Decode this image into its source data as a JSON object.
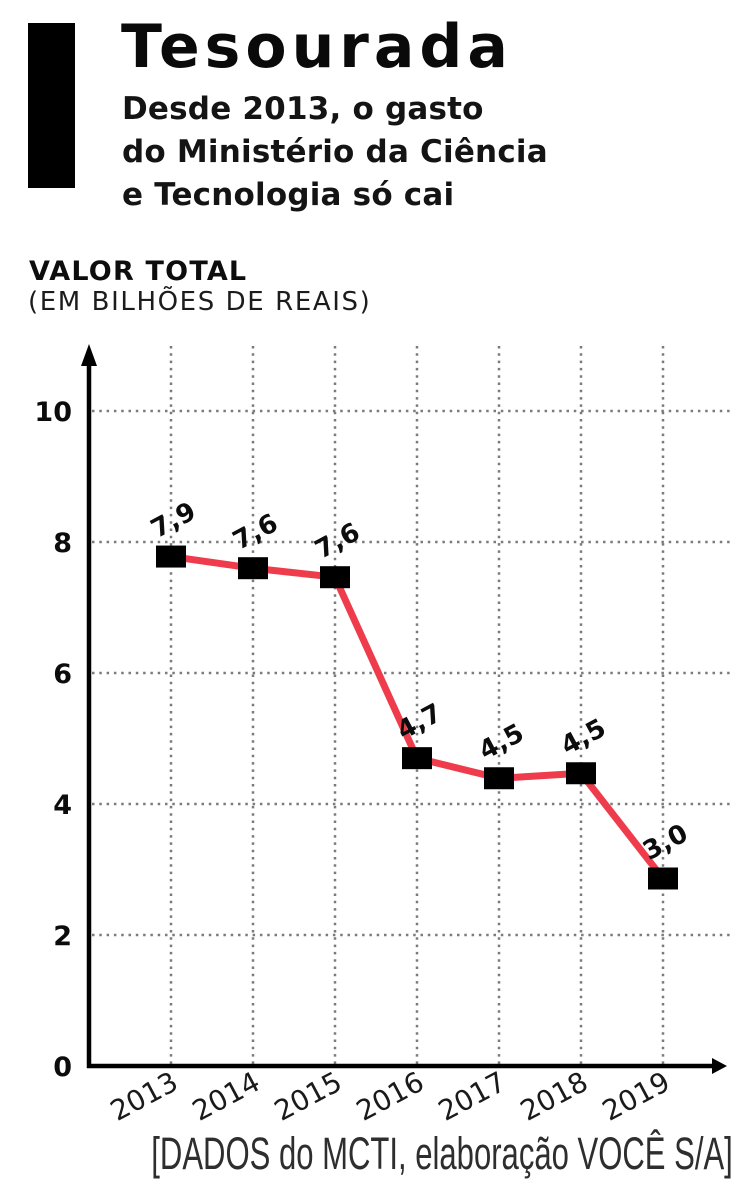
{
  "header": {
    "title": "Tesourada",
    "subtitle_lines": [
      "Desde 2013, o gasto",
      "do Ministério da Ciência",
      "e Tecnologia só cai"
    ]
  },
  "chart_header": {
    "title": "VALOR TOTAL",
    "subtitle": "(EM BILHÕES DE REAIS)"
  },
  "chart_data": {
    "type": "line",
    "title": "VALOR TOTAL (EM BILHÕES DE REAIS)",
    "categories": [
      "2013",
      "2014",
      "2015",
      "2016",
      "2017",
      "2018",
      "2019"
    ],
    "values": [
      7.9,
      7.6,
      7.6,
      4.7,
      4.5,
      4.5,
      3.0
    ],
    "point_labels": [
      "7,9",
      "7,6",
      "7,6",
      "4,7",
      "4,5",
      "4,5",
      "3,0"
    ],
    "yticks": [
      0,
      2,
      4,
      6,
      8,
      10
    ],
    "ylim": [
      0,
      11
    ],
    "xlabel": "",
    "ylabel": "",
    "grid": "dotted-both",
    "legend": "none",
    "line_color": "#ee3c4c",
    "marker_color": "#000000",
    "marker_shape": "square",
    "grid_color": "#7b7b7b"
  },
  "footer": {
    "source": "[DADOS do MCTI, elaboração VOCÊ S/A]"
  }
}
